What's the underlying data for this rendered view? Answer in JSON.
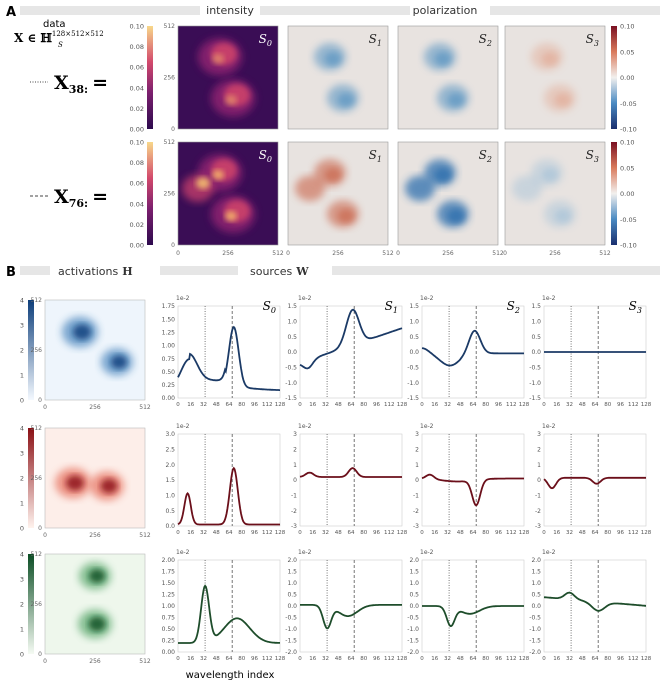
{
  "panel_a": {
    "label": "A",
    "header_intensity": "intensity",
    "header_polarization": "polarization",
    "data_label": "data",
    "x_def": "X ∈ ℍ",
    "x_def_sub": "S",
    "x_def_sup": "128×512×512",
    "row1_label": "X",
    "row1_sub": "38:",
    "row2_label": "X",
    "row2_sub": "76:",
    "equals": "=",
    "intensity_cbar_ticks": [
      "0.10",
      "0.08",
      "0.06",
      "0.04",
      "0.02",
      "0.00"
    ],
    "pol_cbar_ticks": [
      "0.10",
      "0.05",
      "0.00",
      "-0.05",
      "-0.10"
    ],
    "img_axis_ticks": [
      "0",
      "256",
      "512"
    ],
    "stokes_titles": [
      "S0",
      "S1",
      "S2",
      "S3"
    ]
  },
  "panel_b": {
    "label": "B",
    "header_activations": "activations",
    "header_activations_sym": "H",
    "header_sources": "sources",
    "header_sources_sym": "W",
    "act_cbar_ticks": [
      "4",
      "3",
      "2",
      "1",
      "0"
    ],
    "act_axis_ticks": [
      "0",
      "256",
      "512"
    ],
    "scale_label": "1e-2",
    "x_ticks": [
      "0",
      "16",
      "32",
      "48",
      "64",
      "80",
      "96",
      "112",
      "128"
    ],
    "xlabel": "wavelength index",
    "rows": [
      {
        "color": "#1b3a66",
        "yticks": [
          [
            "1.75",
            "1.50",
            "1.25",
            "1.00",
            "0.75",
            "0.50",
            "0.25",
            "0.00"
          ],
          [
            "1.5",
            "1.0",
            "0.5",
            "0.0",
            "-0.5",
            "-1.0",
            "-1.5"
          ],
          [
            "1.5",
            "1.0",
            "0.5",
            "0.0",
            "-0.5",
            "-1.0",
            "-1.5"
          ],
          [
            "1.5",
            "1.0",
            "0.5",
            "0.0",
            "-0.5",
            "-1.0",
            "-1.5"
          ]
        ]
      },
      {
        "color": "#6b0f1a",
        "yticks": [
          [
            "3.0",
            "2.5",
            "2.0",
            "1.5",
            "1.0",
            "0.5",
            "0.0"
          ],
          [
            "3",
            "2",
            "1",
            "0",
            "-1",
            "-2",
            "-3"
          ],
          [
            "3",
            "2",
            "1",
            "0",
            "-1",
            "-2",
            "-3"
          ],
          [
            "3",
            "2",
            "1",
            "0",
            "-1",
            "-2",
            "-3"
          ]
        ]
      },
      {
        "color": "#1e4d2b",
        "yticks": [
          [
            "2.00",
            "1.75",
            "1.50",
            "1.25",
            "1.00",
            "0.75",
            "0.50",
            "0.25",
            "0.00"
          ],
          [
            "2.0",
            "1.5",
            "1.0",
            "0.5",
            "0.0",
            "-0.5",
            "-1.0",
            "-1.5",
            "-2.0"
          ],
          [
            "2.0",
            "1.5",
            "1.0",
            "0.5",
            "0.0",
            "-0.5",
            "-1.0",
            "-1.5",
            "-2.0"
          ],
          [
            "2.0",
            "1.5",
            "1.0",
            "0.5",
            "0.0",
            "-0.5",
            "-1.0",
            "-1.5",
            "-2.0"
          ]
        ]
      }
    ]
  }
}
